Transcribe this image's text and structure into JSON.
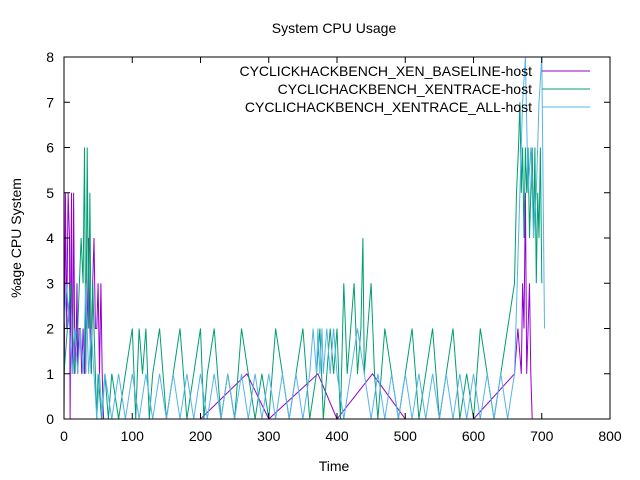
{
  "chart_data": {
    "type": "line",
    "title": "System CPU Usage",
    "xlabel": "Time",
    "ylabel": "%age CPU System",
    "xlim": [
      0,
      800
    ],
    "ylim": [
      0,
      8
    ],
    "xticks": [
      "0",
      "100",
      "200",
      "300",
      "400",
      "500",
      "600",
      "700",
      "800"
    ],
    "yticks": [
      "0",
      "1",
      "2",
      "3",
      "4",
      "5",
      "6",
      "7",
      "8"
    ],
    "grid": false,
    "legend_position": "top-right",
    "series": [
      {
        "name": "CYCLICKHACKBENCH_XEN_BASELINE-host",
        "color": "#9400d3",
        "x": [
          0,
          2,
          4,
          6,
          8,
          9,
          10,
          11,
          12,
          13,
          14,
          16,
          18,
          19,
          20,
          22,
          24,
          26,
          28,
          30,
          32,
          34,
          36,
          38,
          40,
          42,
          44,
          46,
          48,
          50,
          52,
          54,
          56,
          58,
          60,
          100,
          200,
          268,
          300,
          372,
          400,
          452,
          500,
          600,
          660,
          665,
          670,
          672,
          674,
          676,
          678,
          680,
          682,
          684,
          686
        ],
        "values": [
          0,
          5,
          2,
          5,
          4,
          0,
          3,
          5,
          1,
          2,
          5,
          1,
          2,
          3,
          1,
          2,
          2,
          1,
          2,
          1,
          3,
          2,
          4,
          2,
          1,
          3,
          4,
          2,
          2,
          3,
          1,
          3,
          1,
          0,
          0,
          0,
          0,
          1,
          0,
          1,
          0,
          1,
          0,
          0,
          1,
          2,
          1,
          3,
          2,
          5,
          1,
          2,
          3,
          1,
          0
        ]
      },
      {
        "name": "CYCLICHACKBENCH_XENTRACE-host",
        "color": "#009e73",
        "x": [
          0,
          5,
          10,
          15,
          20,
          25,
          28,
          30,
          32,
          34,
          36,
          38,
          40,
          42,
          44,
          46,
          48,
          50,
          55,
          60,
          65,
          70,
          80,
          90,
          100,
          105,
          110,
          115,
          120,
          125,
          130,
          140,
          150,
          160,
          170,
          180,
          190,
          200,
          205,
          210,
          220,
          230,
          240,
          250,
          260,
          270,
          280,
          290,
          300,
          310,
          320,
          330,
          340,
          350,
          360,
          370,
          375,
          380,
          385,
          390,
          395,
          400,
          405,
          410,
          415,
          420,
          425,
          430,
          435,
          438,
          440,
          445,
          450,
          455,
          460,
          470,
          480,
          490,
          500,
          510,
          520,
          530,
          540,
          550,
          560,
          570,
          580,
          590,
          600,
          610,
          620,
          630,
          640,
          650,
          660,
          663,
          666,
          668,
          670,
          672,
          674,
          676,
          678,
          680,
          682,
          684,
          686,
          688,
          690,
          692,
          694,
          696,
          698,
          700
        ],
        "values": [
          1,
          2,
          3,
          1,
          2,
          4,
          3,
          6,
          1,
          6,
          2,
          5,
          1,
          3,
          2,
          1,
          0,
          1,
          0,
          1,
          0,
          1,
          0,
          1,
          2,
          0,
          2,
          1,
          2,
          0,
          1,
          2,
          0,
          1,
          2,
          0,
          1,
          2,
          0,
          1,
          2,
          0,
          1,
          0,
          2,
          1,
          0,
          1,
          0,
          2,
          1,
          0,
          1,
          2,
          0,
          1,
          2,
          0,
          1,
          2,
          1,
          2,
          0,
          3,
          1,
          2,
          3,
          1,
          2,
          4,
          1,
          2,
          3,
          1,
          0,
          2,
          1,
          0,
          1,
          2,
          0,
          1,
          2,
          0,
          1,
          2,
          0,
          1,
          0,
          2,
          1,
          0,
          1,
          2,
          3,
          5,
          6,
          7,
          5,
          6,
          4,
          6,
          5,
          6,
          4,
          5,
          6,
          4,
          6,
          3,
          5,
          4,
          6,
          3
        ]
      },
      {
        "name": "CYCLICHACKBENCH_XENTRACE_ALL-host",
        "color": "#56b4e9",
        "x": [
          0,
          4,
          8,
          12,
          16,
          20,
          24,
          28,
          32,
          36,
          40,
          44,
          48,
          52,
          56,
          60,
          70,
          80,
          90,
          100,
          110,
          120,
          130,
          140,
          150,
          160,
          170,
          180,
          190,
          200,
          210,
          220,
          230,
          240,
          250,
          260,
          270,
          280,
          290,
          300,
          310,
          320,
          330,
          340,
          350,
          360,
          365,
          370,
          372,
          375,
          378,
          380,
          385,
          390,
          395,
          400,
          410,
          420,
          430,
          440,
          450,
          460,
          470,
          480,
          490,
          500,
          510,
          520,
          530,
          540,
          550,
          560,
          570,
          580,
          590,
          600,
          610,
          620,
          630,
          640,
          650,
          660,
          664,
          668,
          672,
          676,
          680,
          684,
          688,
          692,
          696,
          700,
          704
        ],
        "values": [
          2,
          3,
          2,
          1,
          2,
          1,
          2,
          1,
          3,
          1,
          2,
          1,
          0,
          1,
          0,
          1,
          0,
          1,
          0,
          1,
          0,
          1,
          0,
          1,
          0,
          1,
          0,
          1,
          0,
          1,
          0,
          1,
          0,
          1,
          0,
          1,
          0,
          1,
          0,
          1,
          0,
          1,
          0,
          1,
          0,
          1,
          2,
          1,
          2,
          1,
          2,
          1,
          2,
          1,
          2,
          1,
          0,
          1,
          2,
          1,
          0,
          1,
          0,
          1,
          0,
          1,
          0,
          1,
          0,
          1,
          0,
          1,
          0,
          1,
          0,
          1,
          0,
          1,
          0,
          1,
          0,
          1,
          3,
          5,
          7,
          8,
          5,
          6,
          4,
          5,
          7,
          8,
          2
        ]
      }
    ]
  }
}
